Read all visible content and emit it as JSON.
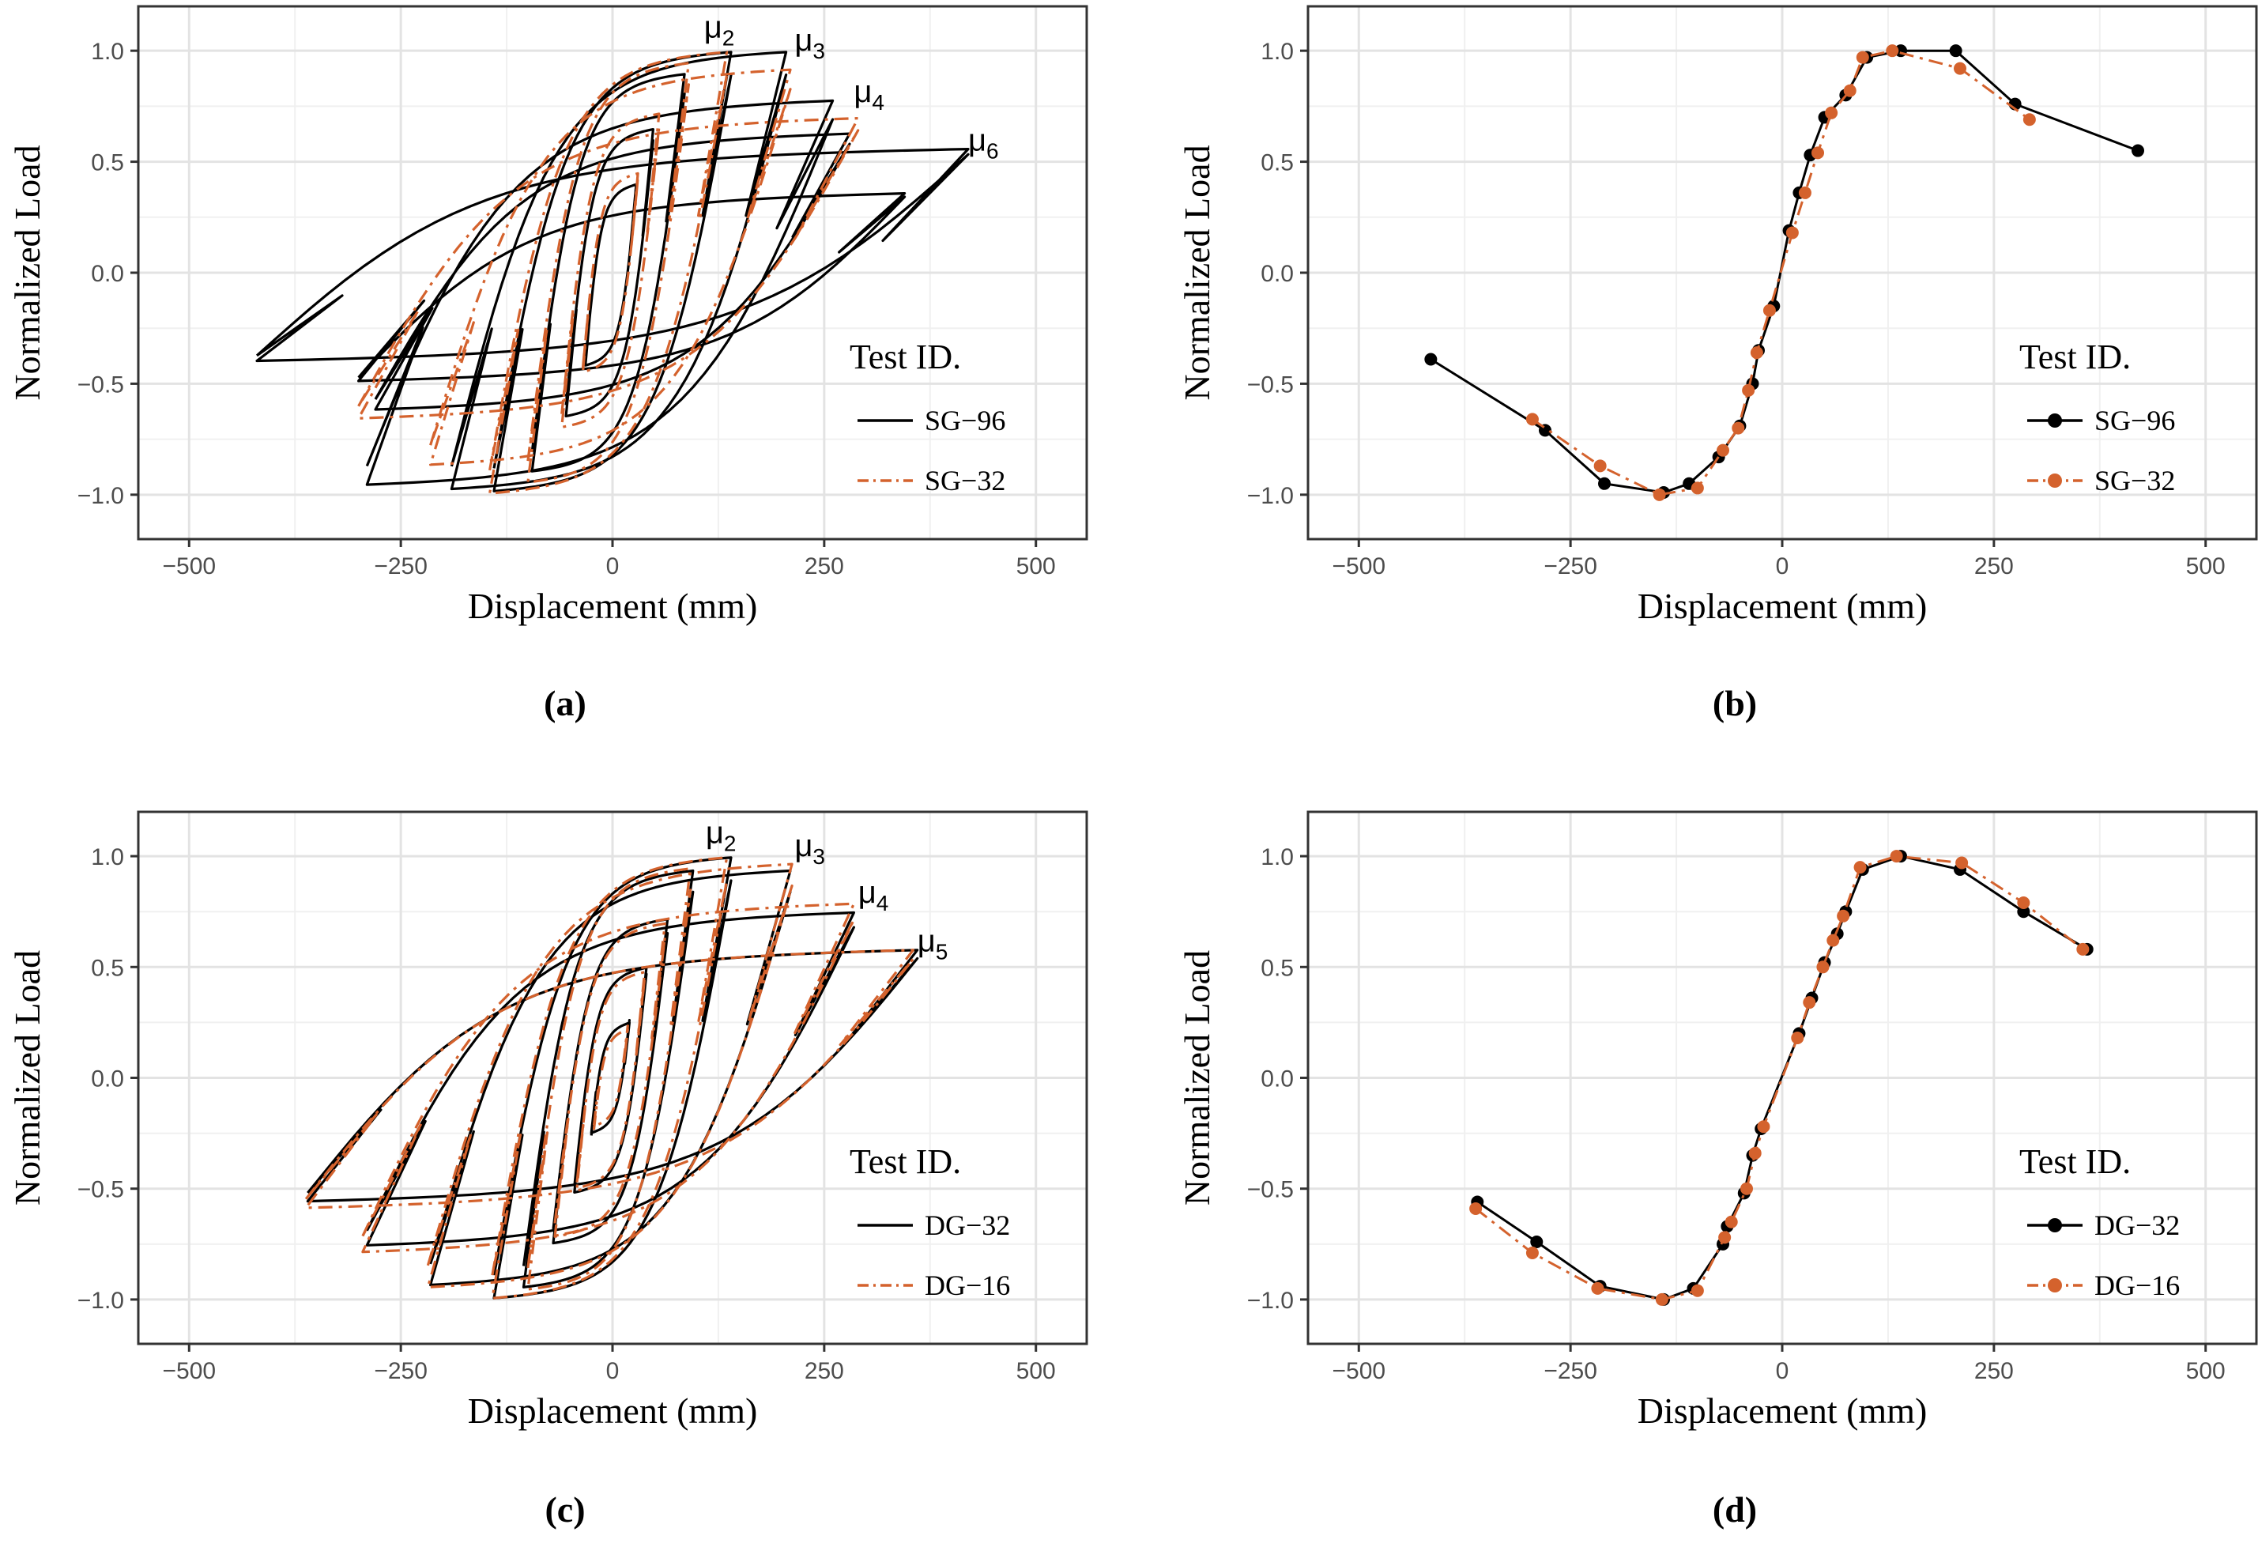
{
  "chart_data": [
    {
      "panel_label": "(a)",
      "type": "line",
      "subtype": "hysteresis",
      "xlabel": "Displacement (mm)",
      "ylabel": "Normalized Load",
      "xlim": [
        -560,
        560
      ],
      "ylim": [
        -1.2,
        1.2
      ],
      "xticks": [
        -500,
        -250,
        0,
        250,
        500
      ],
      "xtick_labels": [
        "−500",
        "−250",
        "0",
        "250",
        "500"
      ],
      "yticks": [
        -1.0,
        -0.5,
        0.0,
        0.5,
        1.0
      ],
      "ytick_labels": [
        "−1.0",
        "−0.5",
        "0.0",
        "0.5",
        "1.0"
      ],
      "grid": true,
      "legend_title": "Test ID.",
      "legend_position": "bottom-right",
      "annotations": [
        {
          "base": "μ",
          "sub": "2",
          "x": 108,
          "y": 1.06
        },
        {
          "base": "μ",
          "sub": "3",
          "x": 215,
          "y": 1.0
        },
        {
          "base": "μ",
          "sub": "4",
          "x": 285,
          "y": 0.77
        },
        {
          "base": "μ",
          "sub": "6",
          "x": 420,
          "y": 0.55
        }
      ],
      "series": [
        {
          "name": "SG−96",
          "color": "#000000",
          "dash": "solid",
          "loops": [
            [
              260,
              0.78,
              -290,
              -0.96
            ],
            [
              205,
              1.0,
              -190,
              -0.98
            ],
            [
              140,
              1.0,
              -140,
              -0.99
            ],
            [
              85,
              0.9,
              -95,
              -0.9
            ],
            [
              48,
              0.65,
              -55,
              -0.65
            ],
            [
              28,
              0.4,
              -32,
              -0.42
            ],
            [
              280,
              0.63,
              -280,
              -0.62
            ],
            [
              345,
              0.36,
              -300,
              -0.49
            ],
            [
              420,
              0.56,
              -420,
              -0.4
            ]
          ]
        },
        {
          "name": "SG−32",
          "color": "#d4622d",
          "dash": "dashdot",
          "loops": [
            [
              290,
              0.7,
              -300,
              -0.66
            ],
            [
              210,
              0.92,
              -215,
              -0.87
            ],
            [
              135,
              1.0,
              -145,
              -1.0
            ],
            [
              90,
              0.95,
              -100,
              -0.95
            ],
            [
              55,
              0.72,
              -60,
              -0.7
            ],
            [
              30,
              0.45,
              -35,
              -0.45
            ]
          ]
        }
      ]
    },
    {
      "panel_label": "(b)",
      "type": "line",
      "subtype": "backbone",
      "xlabel": "Displacement (mm)",
      "ylabel": "Normalized Load",
      "xlim": [
        -560,
        560
      ],
      "ylim": [
        -1.2,
        1.2
      ],
      "xticks": [
        -500,
        -250,
        0,
        250,
        500
      ],
      "xtick_labels": [
        "−500",
        "−250",
        "0",
        "250",
        "500"
      ],
      "yticks": [
        -1.0,
        -0.5,
        0.0,
        0.5,
        1.0
      ],
      "ytick_labels": [
        "−1.0",
        "−0.5",
        "0.0",
        "0.5",
        "1.0"
      ],
      "grid": true,
      "legend_title": "Test ID.",
      "legend_position": "bottom-right",
      "series": [
        {
          "name": "SG−96",
          "color": "#000000",
          "dash": "solid",
          "marker": "circle",
          "points": [
            [
              -415,
              -0.39
            ],
            [
              -280,
              -0.71
            ],
            [
              -210,
              -0.95
            ],
            [
              -140,
              -0.99
            ],
            [
              -110,
              -0.95
            ],
            [
              -75,
              -0.83
            ],
            [
              -50,
              -0.69
            ],
            [
              -35,
              -0.5
            ],
            [
              -28,
              -0.35
            ],
            [
              -10,
              -0.15
            ],
            [
              8,
              0.19
            ],
            [
              20,
              0.36
            ],
            [
              33,
              0.53
            ],
            [
              50,
              0.7
            ],
            [
              75,
              0.8
            ],
            [
              100,
              0.97
            ],
            [
              140,
              1.0
            ],
            [
              205,
              1.0
            ],
            [
              275,
              0.76
            ],
            [
              420,
              0.55
            ]
          ]
        },
        {
          "name": "SG−32",
          "color": "#d4622d",
          "dash": "dashdot",
          "marker": "circle",
          "points": [
            [
              -295,
              -0.66
            ],
            [
              -215,
              -0.87
            ],
            [
              -145,
              -1.0
            ],
            [
              -100,
              -0.97
            ],
            [
              -70,
              -0.8
            ],
            [
              -52,
              -0.7
            ],
            [
              -40,
              -0.53
            ],
            [
              -30,
              -0.36
            ],
            [
              -15,
              -0.17
            ],
            [
              12,
              0.18
            ],
            [
              27,
              0.36
            ],
            [
              42,
              0.54
            ],
            [
              58,
              0.72
            ],
            [
              80,
              0.82
            ],
            [
              95,
              0.97
            ],
            [
              130,
              1.0
            ],
            [
              210,
              0.92
            ],
            [
              292,
              0.69
            ]
          ]
        }
      ]
    },
    {
      "panel_label": "(c)",
      "type": "line",
      "subtype": "hysteresis",
      "xlabel": "Displacement (mm)",
      "ylabel": "Normalized Load",
      "xlim": [
        -560,
        560
      ],
      "ylim": [
        -1.2,
        1.2
      ],
      "xticks": [
        -500,
        -250,
        0,
        250,
        500
      ],
      "xtick_labels": [
        "−500",
        "−250",
        "0",
        "250",
        "500"
      ],
      "yticks": [
        -1.0,
        -0.5,
        0.0,
        0.5,
        1.0
      ],
      "ytick_labels": [
        "−1.0",
        "−0.5",
        "0.0",
        "0.5",
        "1.0"
      ],
      "grid": true,
      "legend_title": "Test ID.",
      "legend_position": "bottom-right",
      "annotations": [
        {
          "base": "μ",
          "sub": "2",
          "x": 110,
          "y": 1.06
        },
        {
          "base": "μ",
          "sub": "3",
          "x": 215,
          "y": 1.0
        },
        {
          "base": "μ",
          "sub": "4",
          "x": 290,
          "y": 0.79
        },
        {
          "base": "μ",
          "sub": "5",
          "x": 360,
          "y": 0.57
        }
      ],
      "series": [
        {
          "name": "DG−32",
          "color": "#000000",
          "dash": "solid",
          "loops": [
            [
              285,
              0.75,
              -290,
              -0.76
            ],
            [
              210,
              0.94,
              -215,
              -0.94
            ],
            [
              140,
              1.0,
              -140,
              -1.0
            ],
            [
              95,
              0.94,
              -105,
              -0.95
            ],
            [
              65,
              0.72,
              -70,
              -0.75
            ],
            [
              40,
              0.5,
              -45,
              -0.52
            ],
            [
              20,
              0.25,
              -25,
              -0.25
            ],
            [
              360,
              0.58,
              -360,
              -0.56
            ]
          ]
        },
        {
          "name": "DG−16",
          "color": "#d4622d",
          "dash": "dashdot",
          "loops": [
            [
              285,
              0.79,
              -295,
              -0.79
            ],
            [
              212,
              0.97,
              -218,
              -0.95
            ],
            [
              135,
              1.0,
              -142,
              -1.0
            ],
            [
              92,
              0.95,
              -100,
              -0.96
            ],
            [
              62,
              0.7,
              -68,
              -0.72
            ],
            [
              38,
              0.48,
              -42,
              -0.5
            ],
            [
              18,
              0.22,
              -22,
              -0.22
            ],
            [
              355,
              0.58,
              -362,
              -0.59
            ]
          ]
        }
      ]
    },
    {
      "panel_label": "(d)",
      "type": "line",
      "subtype": "backbone",
      "xlabel": "Displacement (mm)",
      "ylabel": "Normalized Load",
      "xlim": [
        -560,
        560
      ],
      "ylim": [
        -1.2,
        1.2
      ],
      "xticks": [
        -500,
        -250,
        0,
        250,
        500
      ],
      "xtick_labels": [
        "−500",
        "−250",
        "0",
        "250",
        "500"
      ],
      "yticks": [
        -1.0,
        -0.5,
        0.0,
        0.5,
        1.0
      ],
      "ytick_labels": [
        "−1.0",
        "−0.5",
        "0.0",
        "0.5",
        "1.0"
      ],
      "grid": true,
      "legend_title": "Test ID.",
      "legend_position": "bottom-right",
      "series": [
        {
          "name": "DG−32",
          "color": "#000000",
          "dash": "solid",
          "marker": "circle",
          "points": [
            [
              -360,
              -0.56
            ],
            [
              -290,
              -0.74
            ],
            [
              -215,
              -0.94
            ],
            [
              -140,
              -1.0
            ],
            [
              -105,
              -0.95
            ],
            [
              -70,
              -0.75
            ],
            [
              -65,
              -0.67
            ],
            [
              -45,
              -0.52
            ],
            [
              -35,
              -0.35
            ],
            [
              -25,
              -0.23
            ],
            [
              20,
              0.2
            ],
            [
              35,
              0.36
            ],
            [
              50,
              0.52
            ],
            [
              65,
              0.65
            ],
            [
              75,
              0.75
            ],
            [
              95,
              0.94
            ],
            [
              140,
              1.0
            ],
            [
              210,
              0.94
            ],
            [
              285,
              0.75
            ],
            [
              360,
              0.58
            ]
          ]
        },
        {
          "name": "DG−16",
          "color": "#d4622d",
          "dash": "dashdot",
          "marker": "circle",
          "points": [
            [
              -362,
              -0.59
            ],
            [
              -295,
              -0.79
            ],
            [
              -218,
              -0.95
            ],
            [
              -142,
              -1.0
            ],
            [
              -100,
              -0.96
            ],
            [
              -68,
              -0.72
            ],
            [
              -60,
              -0.65
            ],
            [
              -42,
              -0.5
            ],
            [
              -32,
              -0.34
            ],
            [
              -22,
              -0.22
            ],
            [
              18,
              0.18
            ],
            [
              32,
              0.34
            ],
            [
              48,
              0.5
            ],
            [
              60,
              0.62
            ],
            [
              72,
              0.73
            ],
            [
              92,
              0.95
            ],
            [
              135,
              1.0
            ],
            [
              212,
              0.97
            ],
            [
              285,
              0.79
            ],
            [
              355,
              0.58
            ]
          ]
        }
      ]
    }
  ]
}
